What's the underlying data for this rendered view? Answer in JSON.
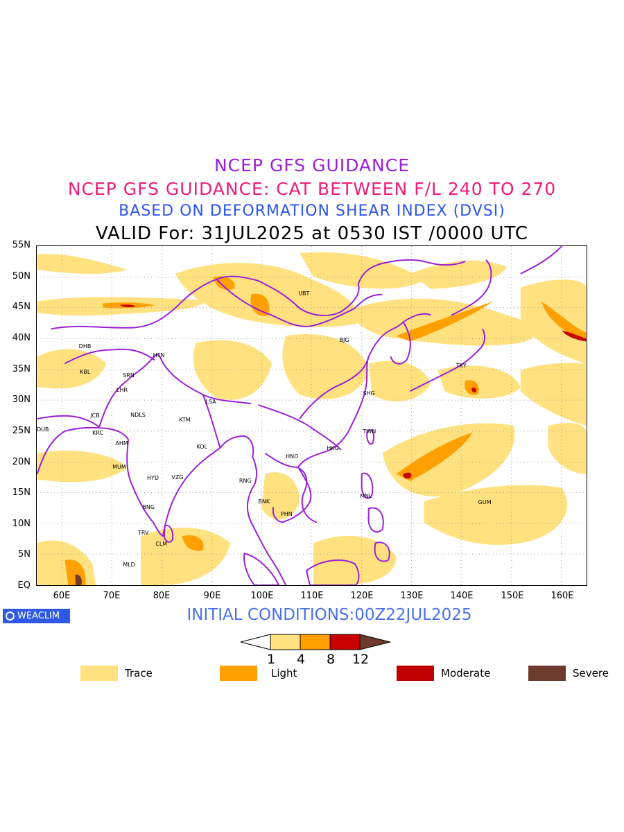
{
  "titles": {
    "line1": "NCEP GFS GUIDANCE",
    "line2": "NCEP GFS GUIDANCE: CAT BETWEEN F/L 240 TO 270",
    "line3": "BASED ON DEFORMATION SHEAR INDEX (DVSI)",
    "line4": "VALID For: 31JUL2025 at 0530 IST /0000 UTC"
  },
  "axes": {
    "latitudes": [
      "55N",
      "50N",
      "45N",
      "40N",
      "35N",
      "30N",
      "25N",
      "20N",
      "15N",
      "10N",
      "5N",
      "EQ"
    ],
    "longitudes": [
      "60E",
      "70E",
      "80E",
      "90E",
      "100E",
      "110E",
      "120E",
      "130E",
      "140E",
      "150E",
      "160E"
    ],
    "lat_range": [
      0,
      55
    ],
    "lon_range": [
      55,
      165
    ]
  },
  "cities": [
    {
      "code": "UBT",
      "lon": 108.3,
      "lat": 47.3
    },
    {
      "code": "BJG",
      "lon": 116.5,
      "lat": 39.8
    },
    {
      "code": "DHB",
      "lon": 64.5,
      "lat": 38.8
    },
    {
      "code": "HTN",
      "lon": 79.3,
      "lat": 37.3
    },
    {
      "code": "KBL",
      "lon": 64.7,
      "lat": 34.6
    },
    {
      "code": "SRN",
      "lon": 73.3,
      "lat": 34.1
    },
    {
      "code": "TKY",
      "lon": 139.8,
      "lat": 35.6
    },
    {
      "code": "LHR",
      "lon": 72.0,
      "lat": 31.7
    },
    {
      "code": "SHG",
      "lon": 121.2,
      "lat": 31.1
    },
    {
      "code": "LSA",
      "lon": 89.8,
      "lat": 29.8
    },
    {
      "code": "JCB",
      "lon": 66.8,
      "lat": 27.6
    },
    {
      "code": "NDLS",
      "lon": 74.8,
      "lat": 27.7
    },
    {
      "code": "KTM",
      "lon": 84.5,
      "lat": 26.9
    },
    {
      "code": "DUB",
      "lon": 55.1,
      "lat": 25.3
    },
    {
      "code": "TWN",
      "lon": 121.2,
      "lat": 25.0
    },
    {
      "code": "KRC",
      "lon": 67.2,
      "lat": 24.8
    },
    {
      "code": "AHM",
      "lon": 71.8,
      "lat": 23.1
    },
    {
      "code": "KOL",
      "lon": 88.0,
      "lat": 22.5
    },
    {
      "code": "HKG",
      "lon": 114.0,
      "lat": 22.3
    },
    {
      "code": "HNO",
      "lon": 105.8,
      "lat": 21.0
    },
    {
      "code": "MUM",
      "lon": 71.2,
      "lat": 19.3
    },
    {
      "code": "HYD",
      "lon": 78.1,
      "lat": 17.5
    },
    {
      "code": "VZG",
      "lon": 83.0,
      "lat": 17.6
    },
    {
      "code": "RNG",
      "lon": 96.5,
      "lat": 17.0
    },
    {
      "code": "MNL",
      "lon": 120.6,
      "lat": 14.6
    },
    {
      "code": "GUM",
      "lon": 144.2,
      "lat": 13.5
    },
    {
      "code": "BNK",
      "lon": 100.3,
      "lat": 13.7
    },
    {
      "code": "PHN",
      "lon": 104.8,
      "lat": 11.6
    },
    {
      "code": "BNG",
      "lon": 77.2,
      "lat": 12.8
    },
    {
      "code": "TRV",
      "lon": 76.3,
      "lat": 8.6
    },
    {
      "code": "CLM",
      "lon": 79.8,
      "lat": 6.8
    },
    {
      "code": "MLD",
      "lon": 73.3,
      "lat": 3.5
    }
  ],
  "branding": "WEACLIM",
  "initial_conditions": "INITIAL CONDITIONS:00Z22JUL2025",
  "colorbar": {
    "ticks": [
      "1",
      "4",
      "8",
      "12"
    ],
    "colors": [
      "#ffe27f",
      "#ffa000",
      "#c80000",
      "#6e3a2e"
    ]
  },
  "legend": [
    {
      "label": "Trace",
      "color": "#ffe27f"
    },
    {
      "label": "Light",
      "color": "#ffa000"
    },
    {
      "label": "Moderate",
      "color": "#c00000"
    },
    {
      "label": "Severe",
      "color": "#6e3a2e"
    }
  ],
  "colors": {
    "boundary": "#9b1fd6",
    "trace": "#ffe27f",
    "light": "#ffa000",
    "moderate": "#c80000",
    "severe": "#6e3a2e"
  }
}
